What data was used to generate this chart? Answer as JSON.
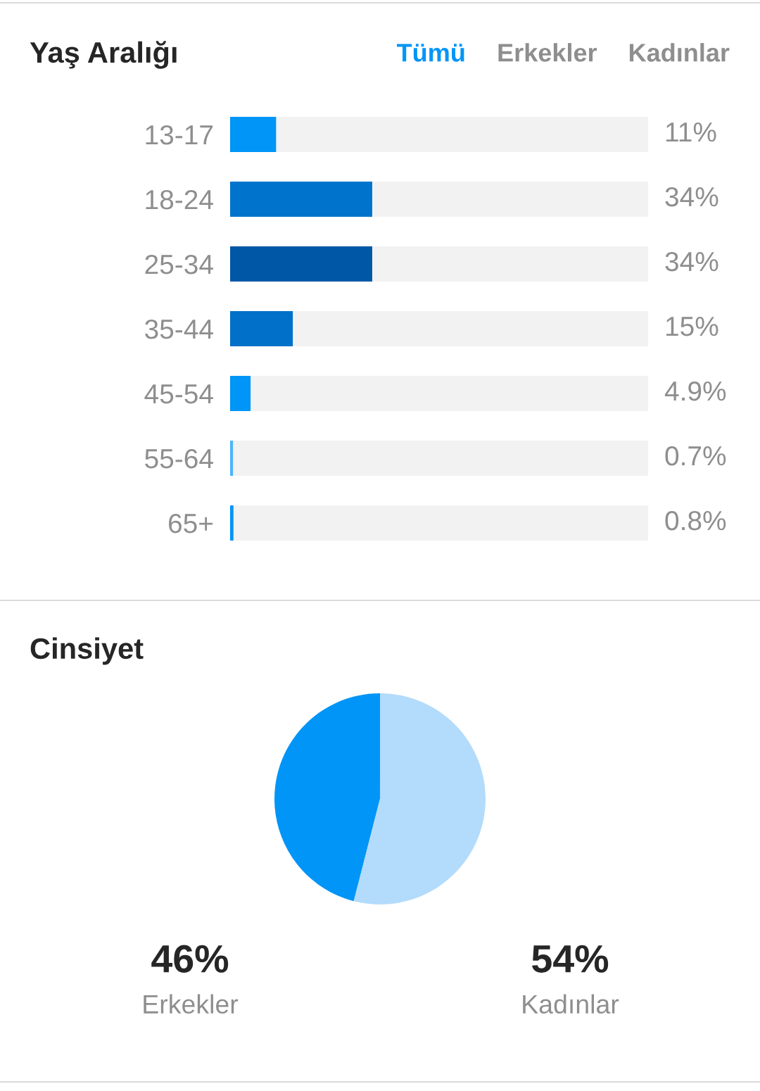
{
  "chart_data": [
    {
      "type": "bar",
      "orientation": "horizontal",
      "title": "Yaş Aralığı",
      "annotations": [
        "Tümü",
        "Erkekler",
        "Kadınlar"
      ],
      "categories": [
        "13-17",
        "18-24",
        "25-34",
        "35-44",
        "45-54",
        "55-64",
        "65+"
      ],
      "values": [
        11,
        34,
        34,
        15,
        4.9,
        0.7,
        0.8
      ],
      "colors": [
        "#0095f6",
        "#0074cc",
        "#0057a6",
        "#0070c8",
        "#0095f6",
        "#4cb5f9",
        "#0095f6"
      ],
      "value_labels": [
        "11%",
        "34%",
        "34%",
        "15%",
        "4.9%",
        "0.7%",
        "0.8%"
      ],
      "xlim": [
        0,
        100
      ],
      "tick_labels": "y"
    },
    {
      "type": "pie",
      "title": "Cinsiyet",
      "categories": [
        "Erkekler",
        "Kadınlar"
      ],
      "values": [
        46,
        54
      ],
      "colors": [
        "#0095f6",
        "#b3dbfb"
      ],
      "value_labels": [
        "46%",
        "54%"
      ]
    }
  ]
}
